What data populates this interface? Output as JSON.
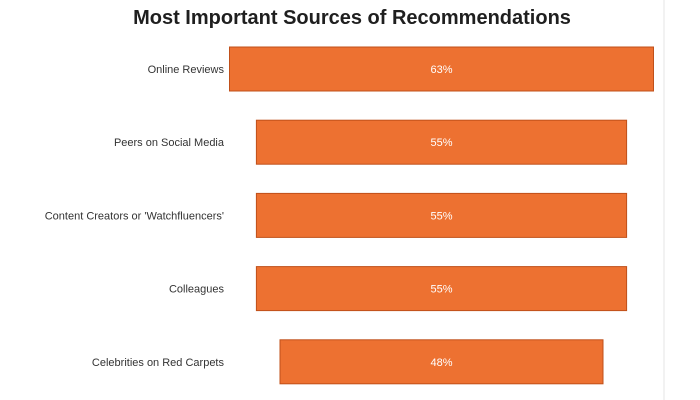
{
  "chart_data": {
    "type": "bar",
    "orientation": "horizontal",
    "layout": "funnel",
    "title": "Most Important Sources of Recommendations",
    "categories": [
      "Online Reviews",
      "Peers on Social Media",
      "Content Creators or 'Watchfluencers'",
      "Colleagues",
      "Celebrities on Red Carpets"
    ],
    "values": [
      63,
      55,
      55,
      55,
      48
    ],
    "value_labels": [
      "63%",
      "55%",
      "55%",
      "55%",
      "48%"
    ],
    "unit": "%",
    "bar_color": "#ED7131",
    "bar_border_color": "#C0501A",
    "label_color": "#FFFFFF",
    "grid": false,
    "legend": "none"
  }
}
